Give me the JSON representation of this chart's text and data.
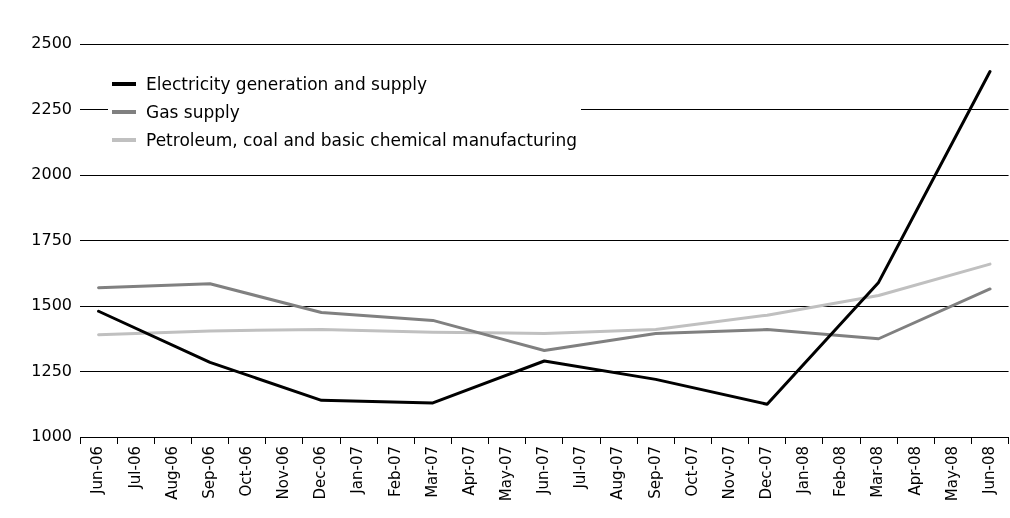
{
  "chart_data": {
    "type": "line",
    "categories": [
      "Jun-06",
      "Jul-06",
      "Aug-06",
      "Sep-06",
      "Oct-06",
      "Nov-06",
      "Dec-06",
      "Jan-07",
      "Feb-07",
      "Mar-07",
      "Apr-07",
      "May-07",
      "Jun-07",
      "Jul-07",
      "Aug-07",
      "Sep-07",
      "Oct-07",
      "Nov-07",
      "Dec-07",
      "Jan-08",
      "Feb-08",
      "Mar-08",
      "Apr-08",
      "May-08",
      "Jun-08"
    ],
    "series": [
      {
        "name": "Electricity generation and supply",
        "color": "#000000",
        "values": [
          1480,
          null,
          null,
          1285,
          null,
          null,
          1140,
          null,
          null,
          1130,
          null,
          null,
          1290,
          null,
          null,
          1220,
          null,
          null,
          1125,
          null,
          null,
          1590,
          null,
          null,
          2395
        ]
      },
      {
        "name": "Gas supply",
        "color": "#808080",
        "values": [
          1570,
          null,
          null,
          1585,
          null,
          null,
          1475,
          null,
          null,
          1445,
          null,
          null,
          1330,
          null,
          null,
          1395,
          null,
          null,
          1410,
          null,
          null,
          1375,
          null,
          null,
          1565
        ]
      },
      {
        "name": "Petroleum, coal and basic chemical manufacturing",
        "color": "#c0c0c0",
        "values": [
          1390,
          null,
          null,
          1405,
          null,
          null,
          1410,
          null,
          null,
          1400,
          null,
          null,
          1395,
          null,
          null,
          1410,
          null,
          null,
          1465,
          null,
          null,
          1540,
          null,
          null,
          1660
        ]
      }
    ],
    "ylim": [
      1000,
      2500
    ],
    "yticks": [
      1000,
      1250,
      1500,
      1750,
      2000,
      2250,
      2500
    ],
    "grid": "y",
    "legend": "top left",
    "marker": "none",
    "line_style": "solid"
  }
}
